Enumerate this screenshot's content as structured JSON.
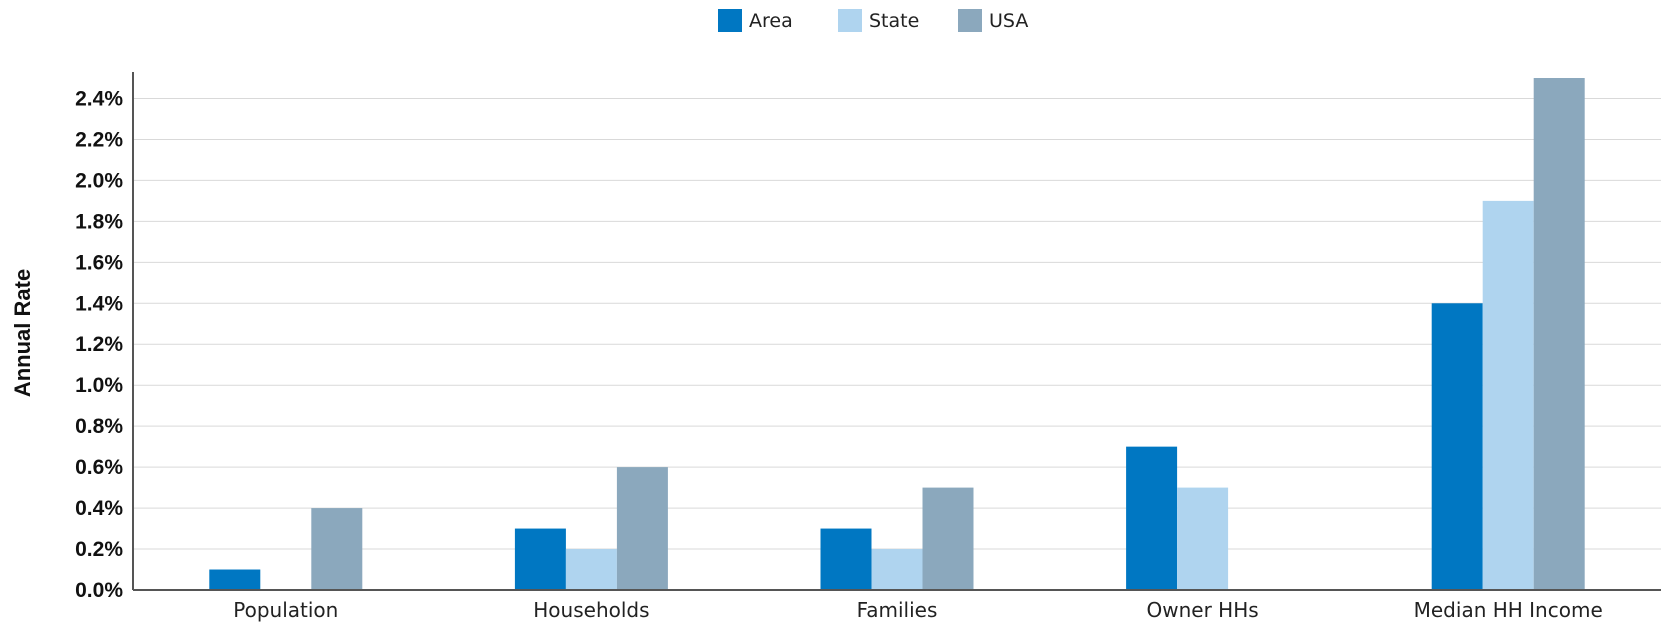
{
  "chart_data": {
    "type": "bar",
    "categories": [
      "Population",
      "Households",
      "Families",
      "Owner HHs",
      "Median HH Income"
    ],
    "series": [
      {
        "name": "Area",
        "color": "#0077c2",
        "values": [
          0.1,
          0.3,
          0.3,
          0.7,
          1.4
        ]
      },
      {
        "name": "State",
        "color": "#afd4ef",
        "values": [
          0.0,
          0.2,
          0.2,
          0.5,
          1.9
        ]
      },
      {
        "name": "USA",
        "color": "#8ba8bd",
        "values": [
          0.4,
          0.6,
          0.5,
          0.0,
          2.5
        ]
      }
    ],
    "title": "",
    "xlabel": "",
    "ylabel": "Annual Rate",
    "ylim": [
      0,
      2.5
    ],
    "yticks": [
      "0.0%",
      "0.2%",
      "0.4%",
      "0.6%",
      "0.8%",
      "1.0%",
      "1.2%",
      "1.4%",
      "1.6%",
      "1.8%",
      "2.0%",
      "2.2%",
      "2.4%"
    ],
    "grid": true,
    "legend": "top-center"
  }
}
